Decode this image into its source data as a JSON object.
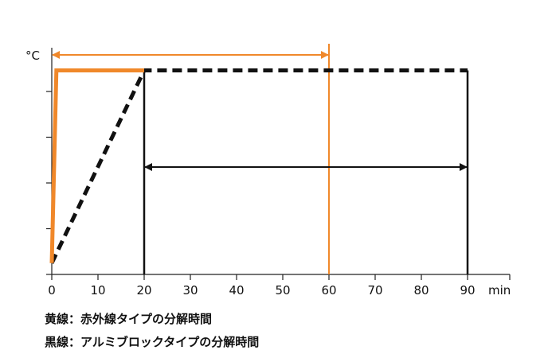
{
  "chart_data": {
    "type": "line",
    "ylabel": "°C",
    "xlabel": "min",
    "x_ticks": [
      0,
      10,
      20,
      30,
      40,
      50,
      60,
      70,
      80,
      90
    ],
    "xlim": [
      0,
      100
    ],
    "y_ticks_count": 5,
    "series": [
      {
        "name": "黄線：赤外線タイプの分解時間",
        "color": "#f0882a",
        "style": "solid",
        "points": [
          [
            0,
            0.05
          ],
          [
            1,
            0.9
          ],
          [
            20,
            0.9
          ]
        ]
      },
      {
        "name": "黒線：アルミブロックタイプの分解時間",
        "color": "#111111",
        "style": "dashed",
        "points": [
          [
            0,
            0.05
          ],
          [
            20,
            0.9
          ],
          [
            90,
            0.9
          ]
        ]
      }
    ],
    "vertical_markers": [
      {
        "x": 60,
        "color": "#f0882a"
      },
      {
        "x": 20,
        "color": "#111111"
      },
      {
        "x": 90,
        "color": "#111111"
      }
    ],
    "spans": [
      {
        "from": 0,
        "to": 60,
        "color": "#f0882a"
      },
      {
        "from": 20,
        "to": 90,
        "color": "#111111"
      }
    ]
  }
}
